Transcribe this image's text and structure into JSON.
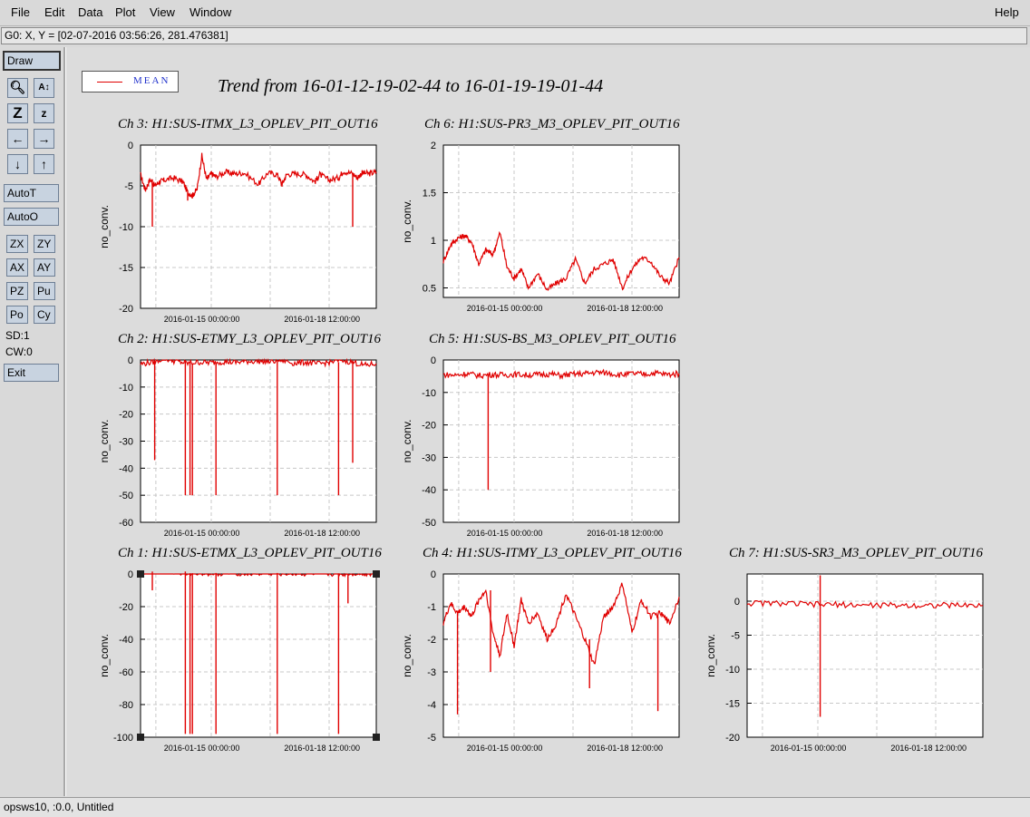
{
  "menu": {
    "file": "File",
    "edit": "Edit",
    "data": "Data",
    "plot": "Plot",
    "view": "View",
    "window": "Window",
    "help": "Help"
  },
  "coord_readout": "G0: X, Y = [02-07-2016 03:56:26, 281.476381]",
  "toolbar": {
    "draw": "Draw",
    "autot": "AutoT",
    "autoo": "AutoO",
    "zx": "ZX",
    "zy": "ZY",
    "ax": "AX",
    "ay": "AY",
    "pz": "PZ",
    "pu": "Pu",
    "po": "Po",
    "cy": "Cy",
    "sd": "SD:1",
    "cw": "CW:0",
    "exit": "Exit",
    "icons": [
      "magnify-icon",
      "autoscale-icon",
      "zoom-out-icon",
      "zoom-in-icon",
      "arrow-left-icon",
      "arrow-right-icon",
      "arrow-down-icon",
      "arrow-up-icon"
    ]
  },
  "status": "opsws10, :0.0, Untitled",
  "colors": {
    "trace": "#e00000",
    "grid": "#c8c8c8",
    "legend_text": "#2233cc"
  },
  "legend": {
    "label": "MEAN"
  },
  "title": "Trend from 16-01-12-19-02-44 to 16-01-19-19-01-44",
  "chart_data": [
    {
      "id": "ch3",
      "type": "line",
      "title": "Ch 3: H1:SUS-ITMX_L3_OPLEV_PIT_OUT16",
      "ylabel": "no_conv.",
      "ylim": [
        -20,
        0
      ],
      "yticks": [
        0,
        -5,
        -10,
        -15,
        -20
      ],
      "xticks": [
        "2016-01-15 00:00:00",
        "2016-01-18 12:00:00"
      ],
      "x_frac": [
        0,
        0.02,
        0.04,
        0.06,
        0.08,
        0.1,
        0.14,
        0.18,
        0.2,
        0.22,
        0.24,
        0.26,
        0.28,
        0.3,
        0.32,
        0.36,
        0.4,
        0.44,
        0.5,
        0.54,
        0.58,
        0.6,
        0.62,
        0.66,
        0.7,
        0.74,
        0.76,
        0.8,
        0.84,
        0.86,
        0.9,
        0.92,
        0.94,
        0.97,
        1.0
      ],
      "values": [
        -3.6,
        -5.5,
        -4.2,
        -5.0,
        -4.5,
        -4.3,
        -4.0,
        -4.5,
        -5.8,
        -6.2,
        -5.4,
        -1.3,
        -4.2,
        -3.5,
        -3.9,
        -3.3,
        -3.5,
        -3.4,
        -4.8,
        -3.4,
        -3.6,
        -4.8,
        -3.6,
        -3.5,
        -3.6,
        -4.5,
        -3.6,
        -4.3,
        -4.0,
        -3.2,
        -3.5,
        -4.0,
        -3.4,
        -3.5,
        -3.3
      ],
      "spikes": [
        {
          "x": 0.05,
          "y": -10
        },
        {
          "x": 0.2,
          "y": -6.8
        },
        {
          "x": 0.9,
          "y": -10
        }
      ]
    },
    {
      "id": "ch6",
      "type": "line",
      "title": "Ch 6: H1:SUS-PR3_M3_OPLEV_PIT_OUT16",
      "ylabel": "no_conv.",
      "ylim": [
        0.4,
        2
      ],
      "yticks": [
        2,
        1.5,
        1,
        0.5
      ],
      "xticks": [
        "2016-01-15 00:00:00",
        "2016-01-18 12:00:00"
      ],
      "x_frac": [
        0,
        0.03,
        0.06,
        0.09,
        0.12,
        0.15,
        0.18,
        0.21,
        0.24,
        0.27,
        0.3,
        0.33,
        0.36,
        0.4,
        0.44,
        0.48,
        0.52,
        0.56,
        0.6,
        0.64,
        0.68,
        0.72,
        0.76,
        0.8,
        0.84,
        0.88,
        0.92,
        0.96,
        1.0
      ],
      "values": [
        0.78,
        0.95,
        1.02,
        1.05,
        0.98,
        0.75,
        0.9,
        0.85,
        1.08,
        0.72,
        0.6,
        0.7,
        0.5,
        0.65,
        0.48,
        0.55,
        0.6,
        0.8,
        0.55,
        0.7,
        0.75,
        0.8,
        0.5,
        0.7,
        0.82,
        0.78,
        0.62,
        0.55,
        0.82
      ],
      "spikes": []
    },
    {
      "id": "ch2",
      "type": "line",
      "title": "Ch 2: H1:SUS-ETMY_L3_OPLEV_PIT_OUT16",
      "ylabel": "no_conv.",
      "ylim": [
        -60,
        0
      ],
      "yticks": [
        0,
        -10,
        -20,
        -30,
        -40,
        -50,
        -60
      ],
      "xticks": [
        "2016-01-15 00:00:00",
        "2016-01-18 12:00:00"
      ],
      "x_frac": [
        0,
        0.05,
        0.1,
        0.15,
        0.2,
        0.25,
        0.3,
        0.35,
        0.4,
        0.45,
        0.5,
        0.55,
        0.6,
        0.65,
        0.7,
        0.75,
        0.8,
        0.85,
        0.9,
        0.95,
        1.0
      ],
      "values": [
        -1.5,
        -0.8,
        0.6,
        -0.5,
        -1.2,
        -0.8,
        -1.0,
        -0.6,
        -0.9,
        -0.5,
        -0.4,
        -0.6,
        0.0,
        -1.2,
        -0.8,
        -1.5,
        -0.8,
        0.0,
        -0.8,
        -2.0,
        -1.3
      ],
      "spikes": [
        {
          "x": 0.06,
          "y": -37
        },
        {
          "x": 0.19,
          "y": -50
        },
        {
          "x": 0.21,
          "y": -50
        },
        {
          "x": 0.22,
          "y": -50
        },
        {
          "x": 0.32,
          "y": -50
        },
        {
          "x": 0.58,
          "y": -50
        },
        {
          "x": 0.84,
          "y": -50
        },
        {
          "x": 0.9,
          "y": -38
        }
      ]
    },
    {
      "id": "ch5",
      "type": "line",
      "title": "Ch 5: H1:SUS-BS_M3_OPLEV_PIT_OUT16",
      "ylabel": "no_conv.",
      "ylim": [
        -50,
        0
      ],
      "yticks": [
        0,
        -10,
        -20,
        -30,
        -40,
        -50
      ],
      "xticks": [
        "2016-01-15 00:00:00",
        "2016-01-18 12:00:00"
      ],
      "x_frac": [
        0,
        0.05,
        0.1,
        0.15,
        0.2,
        0.25,
        0.3,
        0.35,
        0.4,
        0.45,
        0.5,
        0.55,
        0.6,
        0.65,
        0.7,
        0.75,
        0.8,
        0.85,
        0.9,
        0.95,
        1.0
      ],
      "values": [
        -4.5,
        -4.7,
        -4.2,
        -4.8,
        -4.5,
        -4.6,
        -4.4,
        -4.6,
        -4.5,
        -4.3,
        -4.8,
        -4.4,
        -4.2,
        -3.8,
        -4.0,
        -4.6,
        -4.2,
        -4.4,
        -4.0,
        -4.5,
        -4.2
      ],
      "spikes": [
        {
          "x": 0.19,
          "y": -40
        }
      ]
    },
    {
      "id": "ch1",
      "type": "line",
      "title": "Ch 1: H1:SUS-ETMX_L3_OPLEV_PIT_OUT16",
      "ylabel": "no_conv.",
      "ylim": [
        -100,
        0
      ],
      "yticks": [
        0,
        -20,
        -40,
        -60,
        -80,
        -100
      ],
      "xticks": [
        "2016-01-15 00:00:00",
        "2016-01-18 12:00:00"
      ],
      "x_frac": [
        0,
        0.05,
        0.1,
        0.15,
        0.2,
        0.25,
        0.3,
        0.35,
        0.4,
        0.45,
        0.5,
        0.55,
        0.6,
        0.65,
        0.7,
        0.75,
        0.8,
        0.85,
        0.9,
        0.95,
        1.0
      ],
      "values": [
        1.0,
        1.5,
        2.0,
        1.5,
        0.5,
        0.8,
        0.6,
        0.5,
        0.8,
        0.4,
        0.5,
        0.6,
        0.4,
        0.5,
        0.3,
        0.6,
        0.4,
        0.1,
        0.6,
        0.4,
        0.0
      ],
      "spikes": [
        {
          "x": 0.05,
          "y": -10
        },
        {
          "x": 0.19,
          "y": -98
        },
        {
          "x": 0.21,
          "y": -98
        },
        {
          "x": 0.22,
          "y": -98
        },
        {
          "x": 0.32,
          "y": -98
        },
        {
          "x": 0.58,
          "y": -98
        },
        {
          "x": 0.84,
          "y": -98
        },
        {
          "x": 0.88,
          "y": -18
        }
      ]
    },
    {
      "id": "ch4",
      "type": "line",
      "title": "Ch 4: H1:SUS-ITMY_L3_OPLEV_PIT_OUT16",
      "ylabel": "no_conv.",
      "ylim": [
        -5,
        0
      ],
      "yticks": [
        0,
        -1,
        -2,
        -3,
        -4,
        -5
      ],
      "xticks": [
        "2016-01-15 00:00:00",
        "2016-01-18 12:00:00"
      ],
      "x_frac": [
        0,
        0.03,
        0.06,
        0.09,
        0.12,
        0.15,
        0.18,
        0.21,
        0.24,
        0.27,
        0.3,
        0.33,
        0.36,
        0.4,
        0.44,
        0.48,
        0.52,
        0.56,
        0.6,
        0.64,
        0.68,
        0.72,
        0.76,
        0.8,
        0.84,
        0.88,
        0.92,
        0.96,
        1.0
      ],
      "values": [
        -1.5,
        -0.9,
        -1.2,
        -1.0,
        -1.3,
        -0.8,
        -0.5,
        -1.8,
        -2.5,
        -1.2,
        -2.2,
        -0.8,
        -1.5,
        -1.2,
        -2.0,
        -1.5,
        -0.6,
        -1.3,
        -2.0,
        -2.8,
        -1.3,
        -1.0,
        -0.3,
        -1.8,
        -0.8,
        -1.3,
        -1.2,
        -1.5,
        -0.7
      ],
      "spikes": [
        {
          "x": 0.06,
          "y": -4.3
        },
        {
          "x": 0.2,
          "y": -3.0
        },
        {
          "x": 0.62,
          "y": -3.5
        },
        {
          "x": 0.91,
          "y": -4.2
        }
      ]
    },
    {
      "id": "ch7",
      "type": "line",
      "title": "Ch 7: H1:SUS-SR3_M3_OPLEV_PIT_OUT16",
      "ylabel": "no_conv.",
      "ylim": [
        -20,
        4
      ],
      "yticks": [
        0,
        -5,
        -10,
        -15,
        -20
      ],
      "xticks": [
        "2016-01-15 00:00:00",
        "2016-01-18 12:00:00"
      ],
      "x_frac": [
        0,
        0.1,
        0.2,
        0.3,
        0.4,
        0.5,
        0.6,
        0.7,
        0.8,
        0.9,
        1.0
      ],
      "values": [
        -0.3,
        -0.3,
        -0.4,
        -0.5,
        -0.5,
        -0.6,
        -0.6,
        -0.6,
        -0.6,
        -0.6,
        -0.6
      ],
      "spikes": [
        {
          "x": 0.31,
          "y": -17
        },
        {
          "x": 0.31,
          "y": 3.8
        }
      ]
    }
  ]
}
